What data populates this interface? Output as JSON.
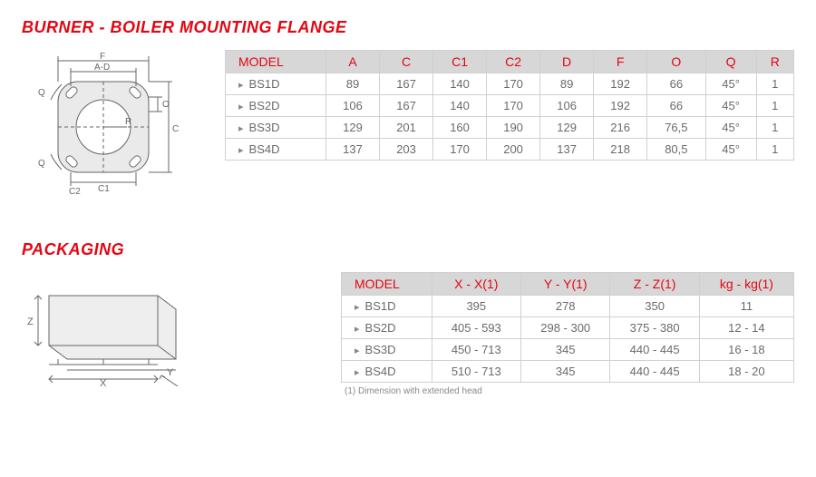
{
  "flange": {
    "heading": "BURNER - BOILER MOUNTING FLANGE",
    "table": {
      "columns": [
        "MODEL",
        "A",
        "C",
        "C1",
        "C2",
        "D",
        "F",
        "O",
        "Q",
        "R"
      ],
      "rows": [
        [
          "BS1D",
          "89",
          "167",
          "140",
          "170",
          "89",
          "192",
          "66",
          "45°",
          "1"
        ],
        [
          "BS2D",
          "106",
          "167",
          "140",
          "170",
          "106",
          "192",
          "66",
          "45°",
          "1"
        ],
        [
          "BS3D",
          "129",
          "201",
          "160",
          "190",
          "129",
          "216",
          "76,5",
          "45°",
          "1"
        ],
        [
          "BS4D",
          "137",
          "203",
          "170",
          "200",
          "137",
          "218",
          "80,5",
          "45°",
          "1"
        ]
      ]
    },
    "diagram_labels": {
      "F": "F",
      "AD": "A-D",
      "Q": "Q",
      "O": "O",
      "R": "R",
      "C": "C",
      "C1": "C1",
      "C2": "C2"
    }
  },
  "packaging": {
    "heading": "PACKAGING",
    "table": {
      "columns": [
        "MODEL",
        "X - X(1)",
        "Y - Y(1)",
        "Z - Z(1)",
        "kg - kg(1)"
      ],
      "rows": [
        [
          "BS1D",
          "395",
          "278",
          "350",
          "11"
        ],
        [
          "BS2D",
          "405 - 593",
          "298 - 300",
          "375 - 380",
          "12 - 14"
        ],
        [
          "BS3D",
          "450 - 713",
          "345",
          "440 - 445",
          "16 - 18"
        ],
        [
          "BS4D",
          "510 - 713",
          "345",
          "440 - 445",
          "18 - 20"
        ]
      ]
    },
    "footnote": "(1) Dimension with extended head",
    "diagram_labels": {
      "X": "X",
      "Y": "Y",
      "Z": "Z"
    }
  },
  "colors": {
    "accent": "#e30613",
    "header_bg": "#d7d7d7",
    "border": "#d0d0d0",
    "text": "#6a6a6a",
    "diagram_stroke": "#666666",
    "diagram_fill": "#e8e8e8"
  }
}
